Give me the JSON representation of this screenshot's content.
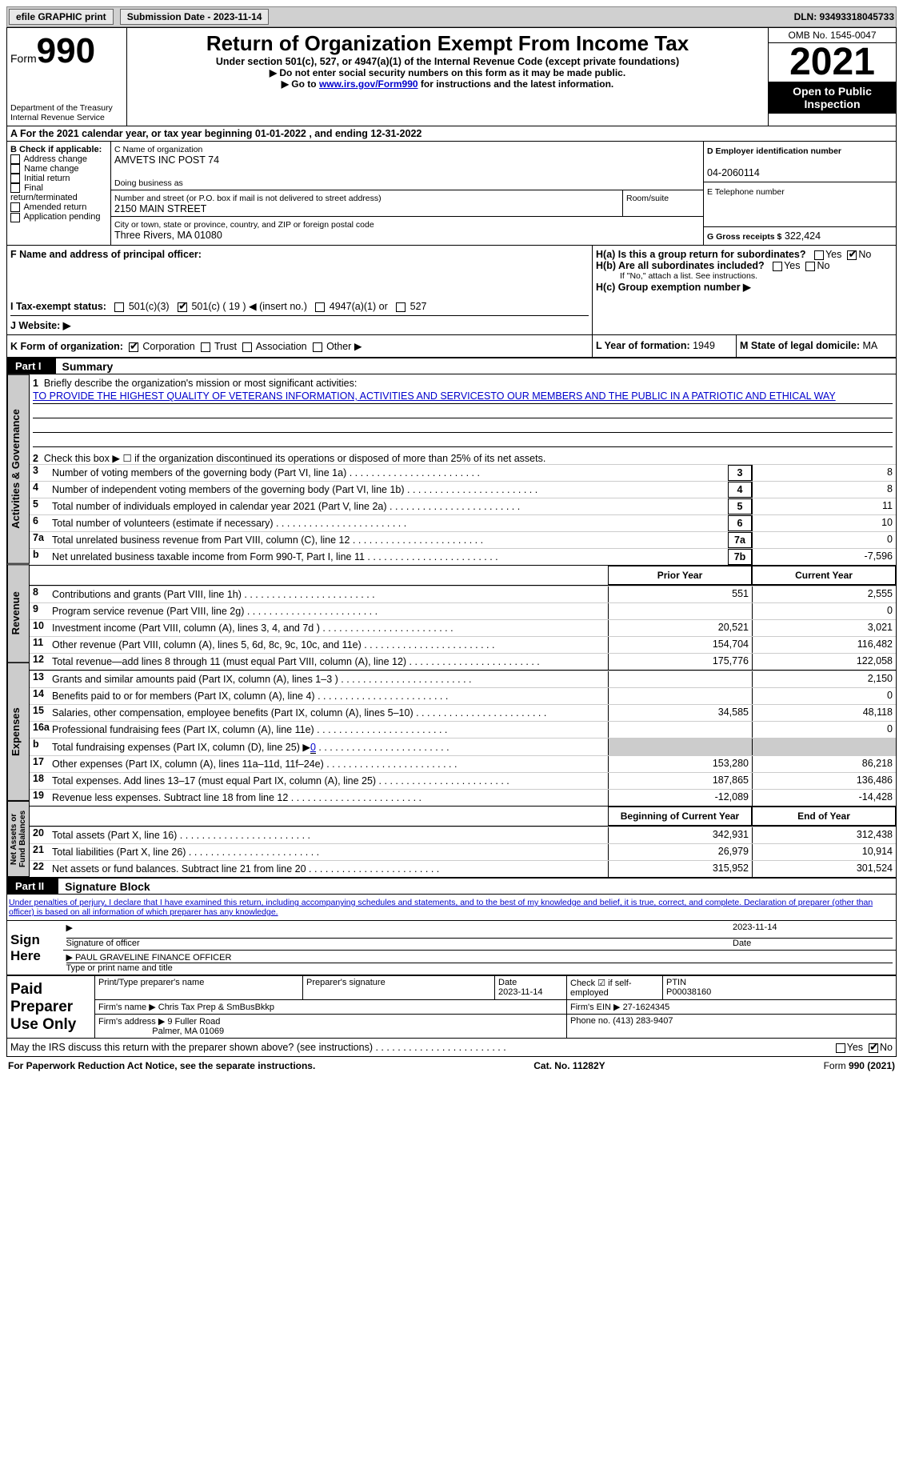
{
  "toolbar": {
    "efile_label": "efile GRAPHIC print",
    "submission_label": "Submission Date - 2023-11-14",
    "dln_label": "DLN: 93493318045733"
  },
  "header": {
    "form_word": "Form",
    "form_no": "990",
    "dept": "Department of the Treasury",
    "irs": "Internal Revenue Service",
    "title": "Return of Organization Exempt From Income Tax",
    "subtitle": "Under section 501(c), 527, or 4947(a)(1) of the Internal Revenue Code (except private foundations)",
    "instr1": "▶ Do not enter social security numbers on this form as it may be made public.",
    "instr2_pre": "▶ Go to ",
    "instr2_link": "www.irs.gov/Form990",
    "instr2_post": " for instructions and the latest information.",
    "omb": "OMB No. 1545-0047",
    "year": "2021",
    "inspect1": "Open to Public",
    "inspect2": "Inspection"
  },
  "A": {
    "text_pre": "A For the 2021 calendar year, or tax year beginning ",
    "begin": "01-01-2022",
    "mid": " , and ending ",
    "end": "12-31-2022"
  },
  "B": {
    "label": "B Check if applicable:",
    "opts": [
      "Address change",
      "Name change",
      "Initial return",
      "Final return/terminated",
      "Amended return",
      "Application pending"
    ]
  },
  "C": {
    "name_label": "C Name of organization",
    "name": "AMVETS INC POST 74",
    "dba_label": "Doing business as",
    "addr_label": "Number and street (or P.O. box if mail is not delivered to street address)",
    "room_label": "Room/suite",
    "addr": "2150 MAIN STREET",
    "city_label": "City or town, state or province, country, and ZIP or foreign postal code",
    "city": "Three Rivers, MA  01080"
  },
  "D": {
    "label": "D Employer identification number",
    "val": "04-2060114"
  },
  "E": {
    "label": "E Telephone number",
    "val": ""
  },
  "F": {
    "label": "F  Name and address of principal officer:"
  },
  "G": {
    "label": "G Gross receipts $",
    "val": "322,424"
  },
  "H": {
    "a_label": "H(a)  Is this a group return for subordinates?",
    "b_label": "H(b)  Are all subordinates included?",
    "b_note": "If \"No,\" attach a list. See instructions.",
    "c_label": "H(c)  Group exemption number ▶",
    "yes": "Yes",
    "no": "No"
  },
  "I": {
    "label": "I  Tax-exempt status:",
    "opts": [
      "501(c)(3)",
      "501(c) ( 19 ) ◀ (insert no.)",
      "4947(a)(1) or",
      "527"
    ]
  },
  "J": {
    "label": "J  Website: ▶"
  },
  "K": {
    "label": "K Form of organization:",
    "opts": [
      "Corporation",
      "Trust",
      "Association",
      "Other ▶"
    ]
  },
  "L": {
    "label": "L Year of formation:",
    "val": "1949"
  },
  "M": {
    "label": "M State of legal domicile:",
    "val": "MA"
  },
  "part1": {
    "label": "Part I",
    "title": "Summary",
    "q1_label": "Briefly describe the organization's mission or most significant activities:",
    "q1_text": "TO PROVIDE THE HIGHEST QUALITY OF VETERANS INFORMATION, ACTIVITIES AND SERVICESTO OUR MEMBERS AND THE PUBLIC IN A PATRIOTIC AND ETHICAL WAY",
    "q2": "Check this box ▶ ☐  if the organization discontinued its operations or disposed of more than 25% of its net assets.",
    "tabs": {
      "gov": "Activities & Governance",
      "rev": "Revenue",
      "exp": "Expenses",
      "net": "Net Assets or Fund Balances"
    },
    "col_prior": "Prior Year",
    "col_curr": "Current Year",
    "col_begin": "Beginning of Current Year",
    "col_end": "End of Year",
    "lines_gov": [
      {
        "n": "3",
        "t": "Number of voting members of the governing body (Part VI, line 1a)",
        "box": "3",
        "v": "8"
      },
      {
        "n": "4",
        "t": "Number of independent voting members of the governing body (Part VI, line 1b)",
        "box": "4",
        "v": "8"
      },
      {
        "n": "5",
        "t": "Total number of individuals employed in calendar year 2021 (Part V, line 2a)",
        "box": "5",
        "v": "11"
      },
      {
        "n": "6",
        "t": "Total number of volunteers (estimate if necessary)",
        "box": "6",
        "v": "10"
      },
      {
        "n": "7a",
        "t": "Total unrelated business revenue from Part VIII, column (C), line 12",
        "box": "7a",
        "v": "0"
      },
      {
        "n": "b",
        "t": "Net unrelated business taxable income from Form 990-T, Part I, line 11",
        "box": "7b",
        "v": "-7,596"
      }
    ],
    "lines_rev": [
      {
        "n": "8",
        "t": "Contributions and grants (Part VIII, line 1h)",
        "p": "551",
        "c": "2,555"
      },
      {
        "n": "9",
        "t": "Program service revenue (Part VIII, line 2g)",
        "p": "",
        "c": "0"
      },
      {
        "n": "10",
        "t": "Investment income (Part VIII, column (A), lines 3, 4, and 7d )",
        "p": "20,521",
        "c": "3,021"
      },
      {
        "n": "11",
        "t": "Other revenue (Part VIII, column (A), lines 5, 6d, 8c, 9c, 10c, and 11e)",
        "p": "154,704",
        "c": "116,482"
      },
      {
        "n": "12",
        "t": "Total revenue—add lines 8 through 11 (must equal Part VIII, column (A), line 12)",
        "p": "175,776",
        "c": "122,058"
      }
    ],
    "lines_exp": [
      {
        "n": "13",
        "t": "Grants and similar amounts paid (Part IX, column (A), lines 1–3 )",
        "p": "",
        "c": "2,150"
      },
      {
        "n": "14",
        "t": "Benefits paid to or for members (Part IX, column (A), line 4)",
        "p": "",
        "c": "0"
      },
      {
        "n": "15",
        "t": "Salaries, other compensation, employee benefits (Part IX, column (A), lines 5–10)",
        "p": "34,585",
        "c": "48,118"
      },
      {
        "n": "16a",
        "t": "Professional fundraising fees (Part IX, column (A), line 11e)",
        "p": "",
        "c": "0"
      },
      {
        "n": "b",
        "t": "Total fundraising expenses (Part IX, column (D), line 25) ▶",
        "p": "SHADE",
        "c": "SHADE",
        "extra": "0"
      },
      {
        "n": "17",
        "t": "Other expenses (Part IX, column (A), lines 11a–11d, 11f–24e)",
        "p": "153,280",
        "c": "86,218"
      },
      {
        "n": "18",
        "t": "Total expenses. Add lines 13–17 (must equal Part IX, column (A), line 25)",
        "p": "187,865",
        "c": "136,486"
      },
      {
        "n": "19",
        "t": "Revenue less expenses. Subtract line 18 from line 12",
        "p": "-12,089",
        "c": "-14,428"
      }
    ],
    "lines_net": [
      {
        "n": "20",
        "t": "Total assets (Part X, line 16)",
        "p": "342,931",
        "c": "312,438"
      },
      {
        "n": "21",
        "t": "Total liabilities (Part X, line 26)",
        "p": "26,979",
        "c": "10,914"
      },
      {
        "n": "22",
        "t": "Net assets or fund balances. Subtract line 21 from line 20",
        "p": "315,952",
        "c": "301,524"
      }
    ]
  },
  "part2": {
    "label": "Part II",
    "title": "Signature Block",
    "decl": "Under penalties of perjury, I declare that I have examined this return, including accompanying schedules and statements, and to the best of my knowledge and belief, it is true, correct, and complete. Declaration of preparer (other than officer) is based on all information of which preparer has any knowledge.",
    "sign_here": "Sign Here",
    "sig_officer": "Signature of officer",
    "sig_date": "2023-11-14",
    "date_label": "Date",
    "officer_name": "PAUL GRAVELINE  FINANCE OFFICER",
    "type_name": "Type or print name and title",
    "paid": "Paid Preparer Use Only",
    "print_name_label": "Print/Type preparer's name",
    "prep_sig_label": "Preparer's signature",
    "prep_date_label": "Date",
    "prep_date": "2023-11-14",
    "check_self": "Check ☑ if self-employed",
    "ptin_label": "PTIN",
    "ptin": "P00038160",
    "firm_name_label": "Firm's name   ▶",
    "firm_name": "Chris Tax Prep & SmBusBkkp",
    "firm_ein_label": "Firm's EIN ▶",
    "firm_ein": "27-1624345",
    "firm_addr_label": "Firm's address ▶",
    "firm_addr1": "9 Fuller Road",
    "firm_addr2": "Palmer, MA  01069",
    "phone_label": "Phone no.",
    "phone": "(413) 283-9407",
    "may_irs": "May the IRS discuss this return with the preparer shown above? (see instructions)",
    "yes": "Yes",
    "no": "No"
  },
  "footer": {
    "paperwork": "For Paperwork Reduction Act Notice, see the separate instructions.",
    "cat": "Cat. No. 11282Y",
    "form": "Form 990 (2021)"
  }
}
